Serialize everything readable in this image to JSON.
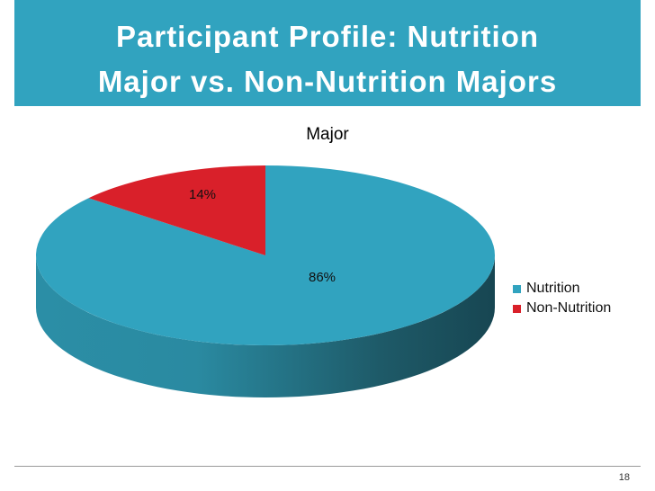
{
  "slide": {
    "title_line1": "Participant Profile: Nutrition",
    "title_line2": "Major vs. Non-Nutrition Majors",
    "page_number": "18",
    "title_bar_color": "#31a3bf"
  },
  "chart_data": {
    "type": "pie",
    "title": "Major",
    "slices": [
      {
        "label": "Nutrition",
        "value": 86,
        "display": "86%",
        "color": "#31a3bf"
      },
      {
        "label": "Non-Nutrition",
        "value": 14,
        "display": "14%",
        "color": "#d9202a"
      }
    ],
    "legend_position": "right",
    "style": "3d"
  }
}
